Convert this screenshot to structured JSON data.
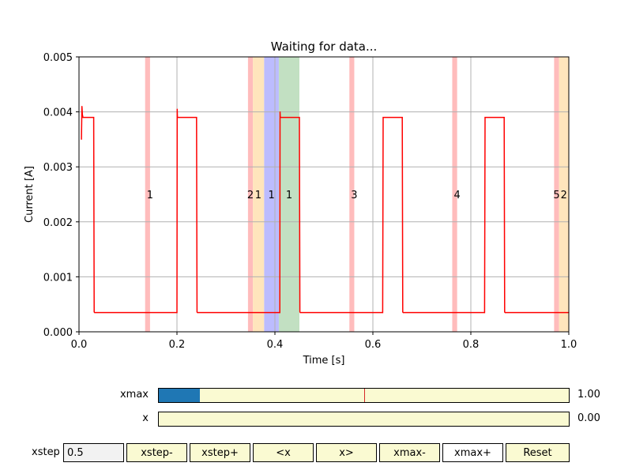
{
  "chart_data": {
    "type": "line",
    "title": "Waiting for data...",
    "xlabel": "Time [s]",
    "ylabel": "Current [A]",
    "xlim": [
      0.0,
      1.0
    ],
    "ylim": [
      0.0,
      0.005
    ],
    "x_ticks": [
      "0.0",
      "0.2",
      "0.4",
      "0.6",
      "0.8",
      "1.0"
    ],
    "x_tick_values": [
      0.0,
      0.2,
      0.4,
      0.6,
      0.8,
      1.0
    ],
    "y_ticks": [
      "0.000",
      "0.001",
      "0.002",
      "0.003",
      "0.004",
      "0.005"
    ],
    "y_tick_values": [
      0.0,
      0.001,
      0.002,
      0.003,
      0.004,
      0.005
    ],
    "grid": true,
    "line_color": "#ff0000",
    "series": [
      {
        "x": [
          0.005,
          0.006,
          0.007,
          0.008,
          0.03,
          0.031,
          0.032,
          0.2,
          0.2005,
          0.201,
          0.24,
          0.241,
          0.242,
          0.41,
          0.4105,
          0.411,
          0.45,
          0.451,
          0.452,
          0.62,
          0.621,
          0.622,
          0.66,
          0.661,
          0.662,
          0.828,
          0.829,
          0.83,
          0.868,
          0.869,
          0.87,
          1.0
        ],
        "y": [
          0.0035,
          0.0041,
          0.00395,
          0.0039,
          0.0039,
          0.00036,
          0.00035,
          0.00035,
          0.00405,
          0.0039,
          0.0039,
          0.00036,
          0.00035,
          0.00035,
          0.004,
          0.0039,
          0.0039,
          0.00036,
          0.00035,
          0.00035,
          0.0039,
          0.0039,
          0.0039,
          0.00036,
          0.00035,
          0.00035,
          0.0039,
          0.0039,
          0.0039,
          0.00036,
          0.00035,
          0.00035
        ]
      }
    ],
    "regions": [
      {
        "x0": 0.135,
        "x1": 0.145,
        "color": "#ffbcbc",
        "label": "1",
        "label_x": 0.145
      },
      {
        "x0": 0.345,
        "x1": 0.355,
        "color": "#ffbcbc",
        "label": "2",
        "label_x": 0.35
      },
      {
        "x0": 0.355,
        "x1": 0.378,
        "color": "#ffe5bc",
        "label": "1",
        "label_x": 0.366
      },
      {
        "x0": 0.378,
        "x1": 0.408,
        "color": "#bcbcff",
        "label": "1",
        "label_x": 0.393
      },
      {
        "x0": 0.408,
        "x1": 0.45,
        "color": "#c2e0c2",
        "label": "1",
        "label_x": 0.429
      },
      {
        "x0": 0.552,
        "x1": 0.562,
        "color": "#ffbcbc",
        "label": "3",
        "label_x": 0.562
      },
      {
        "x0": 0.762,
        "x1": 0.772,
        "color": "#ffbcbc",
        "label": "4",
        "label_x": 0.772
      },
      {
        "x0": 0.97,
        "x1": 0.98,
        "color": "#ffbcbc",
        "label": "5",
        "label_x": 0.975
      },
      {
        "x0": 0.98,
        "x1": 1.0,
        "color": "#ffe5bc",
        "label": "2",
        "label_x": 0.99
      }
    ],
    "region_label_y": 0.0025
  },
  "sliders": {
    "xmax": {
      "label": "xmax",
      "value_text": "1.00",
      "fill_fraction": 0.1,
      "marker_fraction": 0.5
    },
    "x": {
      "label": "x",
      "value_text": "0.00",
      "fill_fraction": 0.0
    }
  },
  "controls": {
    "xstep_label": "xstep",
    "xstep_value": "0.5",
    "buttons": {
      "xstep_minus": "xstep-",
      "xstep_plus": "xstep+",
      "x_left": "<x",
      "x_right": "x>",
      "xmax_minus": "xmax-",
      "xmax_plus": "xmax+",
      "reset": "Reset"
    }
  },
  "colors": {
    "slider_track": "#fafad2",
    "slider_fill": "#1f77b4",
    "slider_marker": "#d62728",
    "xmax_plus_bg": "#ffffff",
    "text_box_bg": "#f2f2f2"
  }
}
